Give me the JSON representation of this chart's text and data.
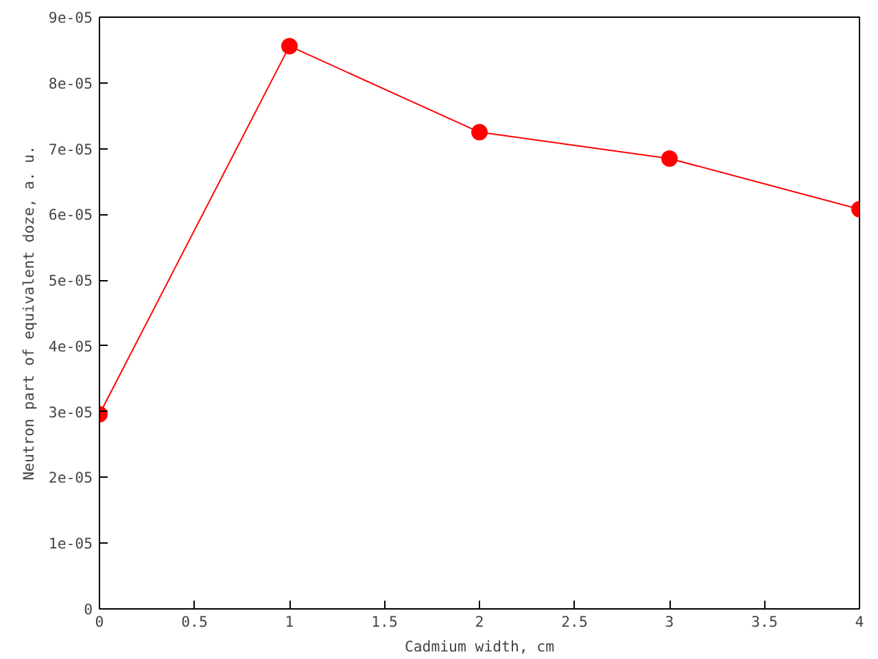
{
  "chart_data": {
    "type": "line",
    "xlabel": "Cadmium width, cm",
    "ylabel": "Neutron part of equivalent doze, a. u.",
    "x": [
      0,
      1,
      2,
      3,
      4
    ],
    "series": [
      {
        "color": "#ff0000",
        "values": [
          2.96e-05,
          8.56e-05,
          7.25e-05,
          6.85e-05,
          6.08e-05
        ]
      }
    ],
    "marker": "circle",
    "line_style": "solid",
    "xlim": [
      0,
      4
    ],
    "xticks": [
      0,
      0.5,
      1,
      1.5,
      2,
      2.5,
      3,
      3.5,
      4
    ],
    "ylim": [
      0,
      9e-05
    ],
    "yticks": [
      0,
      {
        "value": 1e-05,
        "label": "1e-05"
      },
      {
        "value": 2e-05,
        "label": "2e-05"
      },
      {
        "value": 3e-05,
        "label": "3e-05"
      },
      {
        "value": 4e-05,
        "label": "4e-05"
      },
      {
        "value": 5e-05,
        "label": "5e-05"
      },
      {
        "value": 6e-05,
        "label": "6e-05"
      },
      {
        "value": 7e-05,
        "label": "7e-05"
      },
      {
        "value": 8e-05,
        "label": "8e-05"
      },
      {
        "value": 9e-05,
        "label": "9e-05"
      }
    ],
    "grid": false
  }
}
